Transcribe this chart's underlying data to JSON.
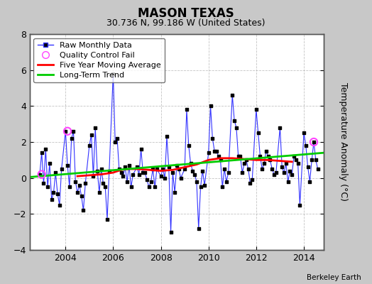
{
  "title": "MASON TEXAS",
  "subtitle": "30.736 N, 99.186 W (United States)",
  "ylabel": "Temperature Anomaly (°C)",
  "attribution": "Berkeley Earth",
  "xlim": [
    2002.5,
    2014.83
  ],
  "ylim": [
    -4,
    8
  ],
  "yticks": [
    -4,
    -2,
    0,
    2,
    4,
    6,
    8
  ],
  "xticks": [
    2004,
    2006,
    2008,
    2010,
    2012,
    2014
  ],
  "background_color": "#c8c8c8",
  "plot_bg_color": "#ffffff",
  "grid_color": "#aaaaaa",
  "raw_color": "#3333ff",
  "marker_color": "#000000",
  "ma_color": "#ff0000",
  "trend_color": "#00cc00",
  "qc_fail_color": "#ff44ff",
  "raw_data": {
    "times": [
      2002.917,
      2003.0,
      2003.083,
      2003.167,
      2003.25,
      2003.333,
      2003.417,
      2003.5,
      2003.583,
      2003.667,
      2003.75,
      2003.833,
      2004.0,
      2004.083,
      2004.167,
      2004.25,
      2004.333,
      2004.417,
      2004.5,
      2004.583,
      2004.667,
      2004.75,
      2004.833,
      2005.0,
      2005.083,
      2005.167,
      2005.25,
      2005.333,
      2005.417,
      2005.5,
      2005.583,
      2005.667,
      2005.75,
      2005.833,
      2006.0,
      2006.083,
      2006.167,
      2006.25,
      2006.333,
      2006.417,
      2006.5,
      2006.583,
      2006.667,
      2006.75,
      2006.833,
      2007.0,
      2007.083,
      2007.167,
      2007.25,
      2007.333,
      2007.417,
      2007.5,
      2007.583,
      2007.667,
      2007.75,
      2007.833,
      2008.0,
      2008.083,
      2008.167,
      2008.25,
      2008.333,
      2008.417,
      2008.5,
      2008.583,
      2008.667,
      2008.75,
      2008.833,
      2009.0,
      2009.083,
      2009.167,
      2009.25,
      2009.333,
      2009.417,
      2009.5,
      2009.583,
      2009.667,
      2009.75,
      2009.833,
      2010.0,
      2010.083,
      2010.167,
      2010.25,
      2010.333,
      2010.417,
      2010.5,
      2010.583,
      2010.667,
      2010.75,
      2010.833,
      2011.0,
      2011.083,
      2011.167,
      2011.25,
      2011.333,
      2011.417,
      2011.5,
      2011.583,
      2011.667,
      2011.75,
      2011.833,
      2012.0,
      2012.083,
      2012.167,
      2012.25,
      2012.333,
      2012.417,
      2012.5,
      2012.583,
      2012.667,
      2012.75,
      2012.833,
      2013.0,
      2013.083,
      2013.167,
      2013.25,
      2013.333,
      2013.417,
      2013.5,
      2013.583,
      2013.667,
      2013.75,
      2013.833,
      2014.0,
      2014.083,
      2014.167,
      2014.25,
      2014.333,
      2014.417,
      2014.5,
      2014.583
    ],
    "values": [
      0.2,
      1.4,
      -0.3,
      1.6,
      -0.5,
      0.8,
      -1.2,
      -0.8,
      0.3,
      -0.9,
      -1.5,
      0.5,
      2.6,
      0.7,
      -0.5,
      2.2,
      2.6,
      -0.2,
      -0.8,
      -0.4,
      -1.0,
      -1.8,
      -0.3,
      1.8,
      2.4,
      0.1,
      2.8,
      0.4,
      -0.8,
      0.5,
      -0.3,
      -0.5,
      -2.3,
      0.4,
      5.8,
      2.0,
      2.2,
      0.5,
      0.3,
      0.1,
      0.6,
      -0.2,
      0.7,
      -0.5,
      0.2,
      0.6,
      0.2,
      1.6,
      0.3,
      0.3,
      -0.1,
      -0.5,
      -0.2,
      0.5,
      -0.5,
      0.5,
      0.1,
      0.5,
      0.0,
      2.3,
      0.6,
      -3.0,
      0.3,
      -0.8,
      0.7,
      0.5,
      0.0,
      0.5,
      3.8,
      1.8,
      0.8,
      0.4,
      0.2,
      -0.2,
      -2.8,
      -0.5,
      0.4,
      -0.4,
      1.4,
      4.0,
      2.2,
      1.5,
      1.5,
      1.2,
      1.0,
      -0.5,
      0.5,
      -0.2,
      0.3,
      4.6,
      3.2,
      2.8,
      1.2,
      1.2,
      0.3,
      0.8,
      1.0,
      0.5,
      -0.3,
      -0.1,
      3.8,
      2.5,
      1.2,
      0.5,
      0.8,
      1.5,
      1.2,
      1.0,
      0.5,
      0.2,
      0.3,
      2.8,
      0.6,
      0.3,
      0.8,
      -0.2,
      0.4,
      0.2,
      1.2,
      1.0,
      0.8,
      -1.5,
      2.5,
      1.8,
      0.6,
      -0.2,
      1.0,
      2.0,
      1.0,
      0.5
    ]
  },
  "qc_fail_points": [
    {
      "time": 2003.0,
      "value": 0.2
    },
    {
      "time": 2004.083,
      "value": 2.6
    },
    {
      "time": 2014.417,
      "value": 2.0
    }
  ],
  "moving_avg": {
    "times": [
      2004.5,
      2005.0,
      2005.5,
      2006.0,
      2006.333,
      2006.667,
      2007.0,
      2007.5,
      2008.0,
      2008.5,
      2009.0,
      2009.5,
      2010.0,
      2010.5,
      2011.0,
      2011.5,
      2012.0,
      2012.5,
      2013.0,
      2013.5
    ],
    "values": [
      0.1,
      0.15,
      0.2,
      0.3,
      0.45,
      0.5,
      0.5,
      0.45,
      0.4,
      0.45,
      0.6,
      0.75,
      1.0,
      1.1,
      1.1,
      1.05,
      1.0,
      1.0,
      0.95,
      0.9
    ]
  },
  "trend": {
    "times": [
      2002.5,
      2014.83
    ],
    "values": [
      0.05,
      1.4
    ]
  },
  "title_fontsize": 12,
  "subtitle_fontsize": 9,
  "tick_fontsize": 9,
  "legend_fontsize": 8
}
